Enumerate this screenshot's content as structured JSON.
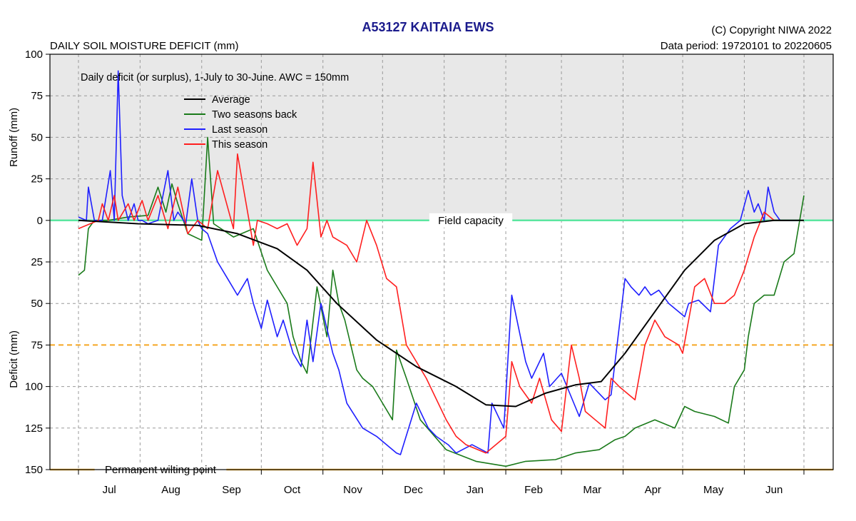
{
  "header": {
    "title": "A53127  KAITAIA EWS",
    "subtitle": "DAILY SOIL MOISTURE DEFICIT (mm)",
    "copyright": "(C) Copyright NIWA  2022",
    "data_period": "Data period:  19720101  to  20220605"
  },
  "colors": {
    "average": "#000000",
    "two_seasons_back": "#1a7a1a",
    "last_season": "#1f1fff",
    "this_season": "#ff1f1f",
    "field_capacity": "#5ce6a0",
    "wilting_point": "#f5b942",
    "dashed_75": "#f5a623",
    "runoff_panel": "#e8e8e8"
  },
  "chart_data": {
    "type": "line",
    "title": "A53127  KAITAIA EWS",
    "subtitle": "DAILY SOIL MOISTURE DEFICIT (mm)",
    "annotation": "Daily deficit (or surplus), 1-July to 30-June.  AWC = 150mm",
    "ylabel_top": "Runoff (mm)",
    "ylabel_bottom": "Deficit (mm)",
    "ylim": [
      -100,
      150
    ],
    "xlim": [
      0,
      365
    ],
    "y_ticks": [
      -100,
      -75,
      -50,
      -25,
      0,
      25,
      50,
      75,
      100,
      125,
      150
    ],
    "y_tick_labels": [
      "100",
      "75",
      "50",
      "25",
      "0",
      "25",
      "50",
      "75",
      "100",
      "125",
      "150"
    ],
    "months": [
      "Jul",
      "Aug",
      "Sep",
      "Oct",
      "Nov",
      "Dec",
      "Jan",
      "Feb",
      "Mar",
      "Apr",
      "May",
      "Jun"
    ],
    "month_starts": [
      0,
      31,
      62,
      92,
      123,
      153,
      184,
      215,
      243,
      274,
      304,
      335,
      365
    ],
    "reference_lines": [
      {
        "name": "Field capacity",
        "y": 0
      },
      {
        "name": "",
        "y": 75
      },
      {
        "name": "Permanent wilting point",
        "y": 150
      }
    ],
    "legend": [
      "Average",
      "Two seasons back",
      "Last season",
      "This season"
    ],
    "legend_position": "top-left",
    "grid": true,
    "series": [
      {
        "name": "Average",
        "color_key": "average",
        "x": [
          0,
          30,
          60,
          80,
          100,
          115,
          130,
          150,
          170,
          190,
          205,
          220,
          235,
          250,
          263,
          275,
          290,
          305,
          320,
          335,
          350,
          365
        ],
        "y": [
          0,
          2,
          3,
          8,
          17,
          30,
          50,
          72,
          88,
          100,
          111,
          112,
          104,
          99,
          97,
          80,
          55,
          30,
          12,
          2,
          0,
          0
        ]
      },
      {
        "name": "Two seasons back",
        "color_key": "two_seasons_back",
        "x": [
          0,
          3,
          5,
          8,
          15,
          25,
          35,
          40,
          44,
          47,
          50,
          55,
          62,
          65,
          68,
          78,
          88,
          95,
          100,
          105,
          108,
          112,
          115,
          120,
          125,
          128,
          131,
          134,
          140,
          143,
          148,
          153,
          158,
          160,
          165,
          172,
          185,
          200,
          215,
          225,
          240,
          250,
          262,
          270,
          275,
          280,
          290,
          300,
          305,
          310,
          320,
          327,
          330,
          335,
          337,
          340,
          345,
          350,
          355,
          360,
          365
        ],
        "y": [
          33,
          30,
          5,
          0,
          0,
          -2,
          -3,
          -20,
          -5,
          -22,
          -10,
          8,
          12,
          -50,
          2,
          10,
          5,
          30,
          40,
          50,
          70,
          85,
          92,
          40,
          70,
          30,
          50,
          60,
          90,
          95,
          100,
          110,
          120,
          78,
          95,
          120,
          138,
          145,
          148,
          145,
          144,
          140,
          138,
          132,
          130,
          125,
          120,
          125,
          112,
          115,
          118,
          122,
          100,
          90,
          70,
          50,
          45,
          45,
          25,
          20,
          -15
        ]
      },
      {
        "name": "Last season",
        "color_key": "last_season",
        "x": [
          0,
          4,
          5,
          8,
          12,
          16,
          18,
          20,
          22,
          25,
          28,
          30,
          32,
          35,
          40,
          45,
          48,
          50,
          54,
          57,
          60,
          62,
          65,
          70,
          75,
          80,
          85,
          88,
          92,
          95,
          100,
          103,
          108,
          112,
          115,
          118,
          122,
          128,
          131,
          135,
          143,
          150,
          155,
          160,
          162,
          170,
          176,
          180,
          186,
          190,
          198,
          206,
          208,
          214,
          218,
          225,
          228,
          234,
          237,
          243,
          252,
          257,
          265,
          268,
          275,
          278,
          282,
          285,
          288,
          292,
          297,
          305,
          307,
          312,
          318,
          322,
          328,
          333,
          337,
          340,
          342,
          345,
          347,
          350,
          353,
          358,
          362
        ],
        "y": [
          -2,
          0,
          -20,
          0,
          0,
          -30,
          0,
          -90,
          -15,
          0,
          -10,
          0,
          0,
          2,
          0,
          -30,
          0,
          -5,
          2,
          -25,
          0,
          5,
          8,
          25,
          35,
          45,
          35,
          50,
          65,
          48,
          70,
          60,
          80,
          88,
          60,
          85,
          50,
          80,
          90,
          110,
          125,
          130,
          135,
          140,
          141,
          110,
          125,
          130,
          135,
          140,
          135,
          140,
          110,
          125,
          45,
          85,
          95,
          80,
          100,
          92,
          118,
          98,
          108,
          105,
          35,
          40,
          45,
          40,
          45,
          42,
          50,
          58,
          50,
          48,
          55,
          15,
          5,
          0,
          -18,
          -5,
          -10,
          0,
          -20,
          -5,
          0,
          0,
          0
        ]
      },
      {
        "name": "This season",
        "color_key": "this_season",
        "x": [
          0,
          10,
          12,
          15,
          18,
          20,
          25,
          28,
          32,
          35,
          40,
          45,
          50,
          55,
          60,
          65,
          70,
          78,
          80,
          88,
          90,
          95,
          100,
          105,
          110,
          115,
          118,
          122,
          125,
          128,
          135,
          140,
          145,
          150,
          155,
          160,
          165,
          175,
          185,
          190,
          195,
          205,
          210,
          215,
          218,
          222,
          228,
          232,
          238,
          243,
          248,
          252,
          255,
          260,
          265,
          268,
          272,
          277,
          280,
          285,
          290,
          295,
          302,
          304,
          310,
          315,
          320,
          325,
          330,
          335,
          340,
          345,
          350,
          358
        ],
        "y": [
          5,
          0,
          -10,
          0,
          -15,
          0,
          -10,
          0,
          -12,
          0,
          -15,
          5,
          -20,
          8,
          0,
          5,
          -30,
          5,
          -40,
          15,
          0,
          2,
          5,
          2,
          15,
          5,
          -35,
          10,
          0,
          10,
          15,
          25,
          0,
          15,
          35,
          40,
          75,
          95,
          120,
          130,
          135,
          140,
          135,
          130,
          85,
          100,
          110,
          95,
          120,
          127,
          75,
          95,
          115,
          120,
          125,
          95,
          100,
          105,
          108,
          75,
          60,
          70,
          75,
          80,
          40,
          35,
          50,
          50,
          45,
          30,
          10,
          -5,
          0,
          0
        ]
      }
    ]
  }
}
